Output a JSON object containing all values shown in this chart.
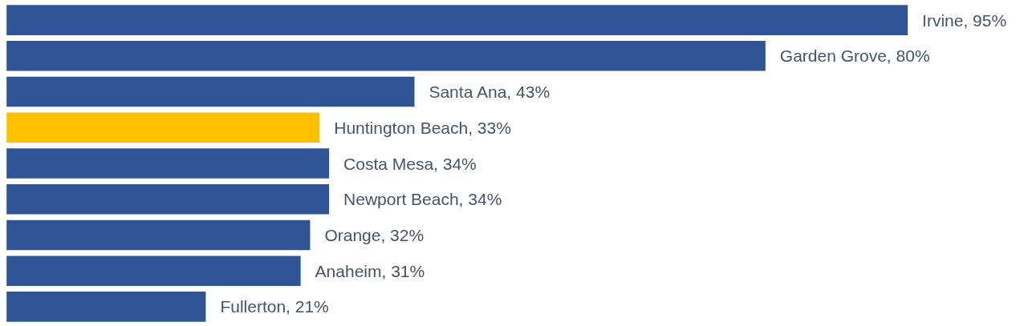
{
  "chart_data": {
    "type": "bar",
    "orientation": "horizontal",
    "categories": [
      null,
      null,
      null,
      null,
      null,
      null,
      null,
      null,
      null
    ],
    "values": [
      95,
      80,
      43,
      33,
      34,
      34,
      32,
      31,
      21
    ],
    "colors": [
      "#2f5597",
      "#2f5597",
      "#2f5597",
      "#ffc000",
      "#2f5597",
      "#2f5597",
      "#2f5597",
      "#2f5597",
      "#2f5597"
    ],
    "value_labels": [
      "Irvine, 95%",
      "Garden Grove, 80%",
      "Santa Ana, 43%",
      "Huntington Beach, 33%",
      "Costa Mesa, 34%",
      "Newport Beach, 34%",
      "Orange, 32%",
      "Anaheim, 31%",
      "Fullerton, 21%"
    ],
    "grid": false
  }
}
